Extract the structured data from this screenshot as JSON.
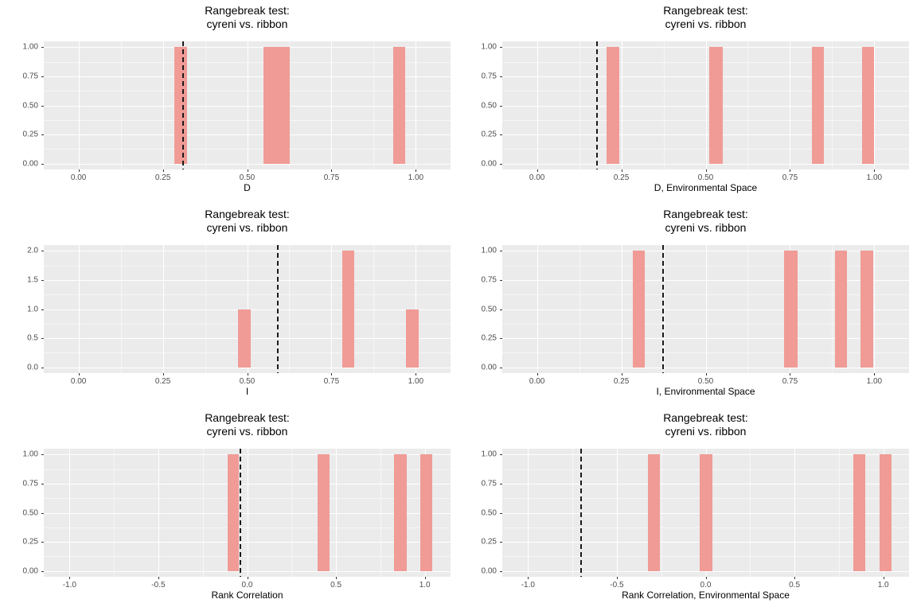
{
  "figure": {
    "background": "#FFFFFF",
    "panel_background": "#EBEBEB",
    "grid_major_color": "#FFFFFF",
    "grid_minor_color": "#FFFFFF",
    "bar_fill": "#F09B96",
    "observed_line_color": "#1A1A1A",
    "tick_mark_color": "#333333",
    "tick_label_color": "#4D4D4D",
    "title_color": "#000000"
  },
  "chart_data": [
    {
      "type": "bar",
      "title": [
        "Rangebreak test:",
        "cyreni vs. ribbon"
      ],
      "xlabel": "D",
      "ylabel": "",
      "xlim": [
        -0.103,
        1.103
      ],
      "ylim": [
        -0.05,
        1.05
      ],
      "x_ticks": [
        {
          "value": 0.0,
          "label": "0.00"
        },
        {
          "value": 0.25,
          "label": "0.25"
        },
        {
          "value": 0.5,
          "label": "0.50"
        },
        {
          "value": 0.75,
          "label": "0.75"
        },
        {
          "value": 1.0,
          "label": "1.00"
        }
      ],
      "y_ticks": [
        {
          "value": 0.0,
          "label": "0.00"
        },
        {
          "value": 0.25,
          "label": "0.25"
        },
        {
          "value": 0.5,
          "label": "0.50"
        },
        {
          "value": 0.75,
          "label": "0.75"
        },
        {
          "value": 1.0,
          "label": "1.00"
        }
      ],
      "bars": [
        {
          "x0": 0.284,
          "x1": 0.323,
          "height": 1
        },
        {
          "x0": 0.548,
          "x1": 0.627,
          "height": 1
        },
        {
          "x0": 0.932,
          "x1": 0.969,
          "height": 1
        }
      ],
      "observed_line_x": 0.31
    },
    {
      "type": "bar",
      "title": [
        "Rangebreak test:",
        "cyreni vs. ribbon"
      ],
      "xlabel": "D, Environmental Space",
      "ylabel": "",
      "xlim": [
        -0.103,
        1.103
      ],
      "ylim": [
        -0.05,
        1.05
      ],
      "x_ticks": [
        {
          "value": 0.0,
          "label": "0.00"
        },
        {
          "value": 0.25,
          "label": "0.25"
        },
        {
          "value": 0.5,
          "label": "0.50"
        },
        {
          "value": 0.75,
          "label": "0.75"
        },
        {
          "value": 1.0,
          "label": "1.00"
        }
      ],
      "y_ticks": [
        {
          "value": 0.0,
          "label": "0.00"
        },
        {
          "value": 0.25,
          "label": "0.25"
        },
        {
          "value": 0.5,
          "label": "0.50"
        },
        {
          "value": 0.75,
          "label": "0.75"
        },
        {
          "value": 1.0,
          "label": "1.00"
        }
      ],
      "bars": [
        {
          "x0": 0.206,
          "x1": 0.245,
          "height": 1
        },
        {
          "x0": 0.511,
          "x1": 0.551,
          "height": 1
        },
        {
          "x0": 0.814,
          "x1": 0.85,
          "height": 1
        },
        {
          "x0": 0.964,
          "x1": 0.999,
          "height": 1
        }
      ],
      "observed_line_x": 0.177
    },
    {
      "type": "bar",
      "title": [
        "Rangebreak test:",
        "cyreni vs. ribbon"
      ],
      "xlabel": "I",
      "ylabel": "",
      "xlim": [
        -0.103,
        1.103
      ],
      "ylim": [
        -0.1,
        2.1
      ],
      "x_ticks": [
        {
          "value": 0.0,
          "label": "0.00"
        },
        {
          "value": 0.25,
          "label": "0.25"
        },
        {
          "value": 0.5,
          "label": "0.50"
        },
        {
          "value": 0.75,
          "label": "0.75"
        },
        {
          "value": 1.0,
          "label": "1.00"
        }
      ],
      "y_ticks": [
        {
          "value": 0.0,
          "label": "0.0"
        },
        {
          "value": 0.5,
          "label": "0.5"
        },
        {
          "value": 1.0,
          "label": "1.0"
        },
        {
          "value": 1.5,
          "label": "1.5"
        },
        {
          "value": 2.0,
          "label": "2.0"
        }
      ],
      "bars": [
        {
          "x0": 0.473,
          "x1": 0.51,
          "height": 1
        },
        {
          "x0": 0.781,
          "x1": 0.818,
          "height": 2
        },
        {
          "x0": 0.971,
          "x1": 1.008,
          "height": 1
        }
      ],
      "observed_line_x": 0.591
    },
    {
      "type": "bar",
      "title": [
        "Rangebreak test:",
        "cyreni vs. ribbon"
      ],
      "xlabel": "I, Environmental Space",
      "ylabel": "",
      "xlim": [
        -0.103,
        1.103
      ],
      "ylim": [
        -0.05,
        1.05
      ],
      "x_ticks": [
        {
          "value": 0.0,
          "label": "0.00"
        },
        {
          "value": 0.25,
          "label": "0.25"
        },
        {
          "value": 0.5,
          "label": "0.50"
        },
        {
          "value": 0.75,
          "label": "0.75"
        },
        {
          "value": 1.0,
          "label": "1.00"
        }
      ],
      "y_ticks": [
        {
          "value": 0.0,
          "label": "0.00"
        },
        {
          "value": 0.25,
          "label": "0.25"
        },
        {
          "value": 0.5,
          "label": "0.50"
        },
        {
          "value": 0.75,
          "label": "0.75"
        },
        {
          "value": 1.0,
          "label": "1.00"
        }
      ],
      "bars": [
        {
          "x0": 0.283,
          "x1": 0.32,
          "height": 1
        },
        {
          "x0": 0.733,
          "x1": 0.772,
          "height": 1
        },
        {
          "x0": 0.884,
          "x1": 0.92,
          "height": 1
        },
        {
          "x0": 0.959,
          "x1": 0.996,
          "height": 1
        }
      ],
      "observed_line_x": 0.373
    },
    {
      "type": "bar",
      "title": [
        "Rangebreak test:",
        "cyreni vs. ribbon"
      ],
      "xlabel": "Rank Correlation",
      "ylabel": "",
      "xlim": [
        -1.145,
        1.145
      ],
      "ylim": [
        -0.05,
        1.05
      ],
      "x_ticks": [
        {
          "value": -1.0,
          "label": "-1.0"
        },
        {
          "value": -0.5,
          "label": "-0.5"
        },
        {
          "value": 0.0,
          "label": "0.0"
        },
        {
          "value": 0.5,
          "label": "0.5"
        },
        {
          "value": 1.0,
          "label": "1.0"
        }
      ],
      "y_ticks": [
        {
          "value": 0.0,
          "label": "0.00"
        },
        {
          "value": 0.25,
          "label": "0.25"
        },
        {
          "value": 0.5,
          "label": "0.50"
        },
        {
          "value": 0.75,
          "label": "0.75"
        },
        {
          "value": 1.0,
          "label": "1.00"
        }
      ],
      "bars": [
        {
          "x0": -0.112,
          "x1": -0.049,
          "height": 1
        },
        {
          "x0": 0.398,
          "x1": 0.466,
          "height": 1
        },
        {
          "x0": 0.828,
          "x1": 0.898,
          "height": 1
        },
        {
          "x0": 0.974,
          "x1": 1.041,
          "height": 1
        }
      ],
      "observed_line_x": -0.04
    },
    {
      "type": "bar",
      "title": [
        "Rangebreak test:",
        "cyreni vs. ribbon"
      ],
      "xlabel": "Rank Correlation, Environmental Space",
      "ylabel": "",
      "xlim": [
        -1.145,
        1.145
      ],
      "ylim": [
        -0.05,
        1.05
      ],
      "x_ticks": [
        {
          "value": -1.0,
          "label": "-1.0"
        },
        {
          "value": -0.5,
          "label": "-0.5"
        },
        {
          "value": 0.0,
          "label": "0.0"
        },
        {
          "value": 0.5,
          "label": "0.5"
        },
        {
          "value": 1.0,
          "label": "1.0"
        }
      ],
      "y_ticks": [
        {
          "value": 0.0,
          "label": "0.00"
        },
        {
          "value": 0.25,
          "label": "0.25"
        },
        {
          "value": 0.5,
          "label": "0.50"
        },
        {
          "value": 0.75,
          "label": "0.75"
        },
        {
          "value": 1.0,
          "label": "1.00"
        }
      ],
      "bars": [
        {
          "x0": -0.327,
          "x1": -0.256,
          "height": 1
        },
        {
          "x0": -0.033,
          "x1": 0.037,
          "height": 1
        },
        {
          "x0": 0.832,
          "x1": 0.899,
          "height": 1
        },
        {
          "x0": 0.978,
          "x1": 1.046,
          "height": 1
        }
      ],
      "observed_line_x": -0.703
    }
  ]
}
